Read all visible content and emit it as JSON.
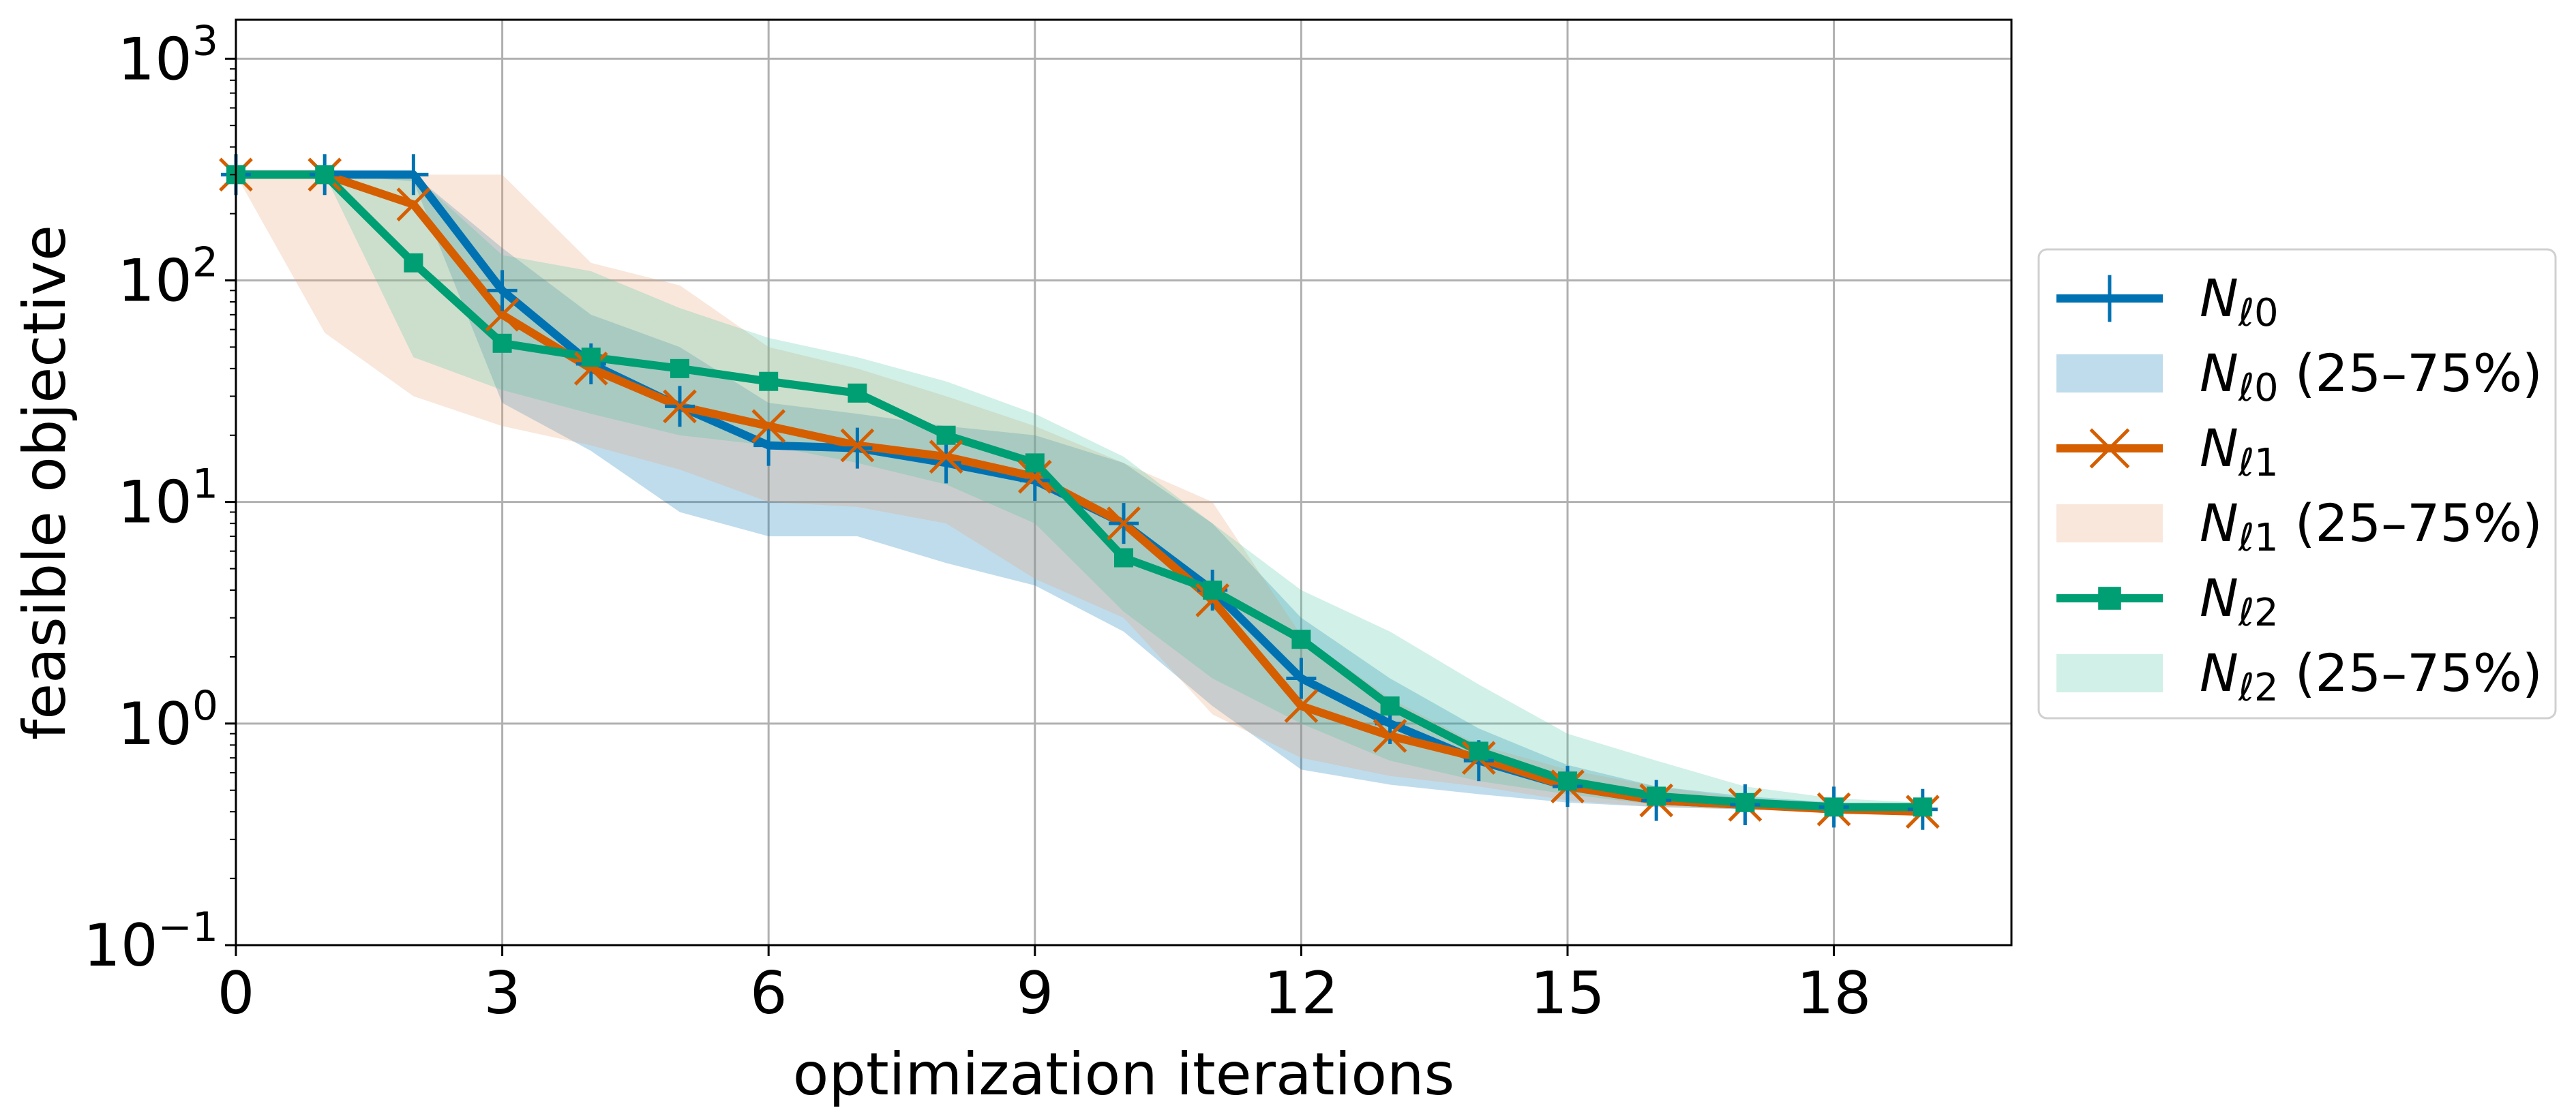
{
  "chart_data": {
    "type": "line",
    "title": "",
    "xlabel": "optimization iterations",
    "ylabel": "feasible objective",
    "xlim": [
      0,
      20
    ],
    "ylim": [
      0.1,
      1500
    ],
    "yscale": "log",
    "xticks": [
      0,
      3,
      6,
      9,
      12,
      15,
      18
    ],
    "xtick_labels": [
      "0",
      "3",
      "6",
      "9",
      "12",
      "15",
      "18"
    ],
    "yticks": [
      0.1,
      1,
      10,
      100,
      1000
    ],
    "ytick_labels": [
      {
        "base": "10",
        "exp": "−1"
      },
      {
        "base": "10",
        "exp": "0"
      },
      {
        "base": "10",
        "exp": "1"
      },
      {
        "base": "10",
        "exp": "2"
      },
      {
        "base": "10",
        "exp": "3"
      }
    ],
    "grid": true,
    "legend_position": "right, outside the plot",
    "x": [
      0,
      1,
      2,
      3,
      4,
      5,
      6,
      7,
      8,
      9,
      10,
      11,
      12,
      13,
      14,
      15,
      16,
      17,
      18,
      19
    ],
    "series": [
      {
        "name": "N",
        "name_sub": "ℓ0",
        "color": "#0072b2",
        "marker": "plus",
        "values": [
          300,
          300,
          300,
          90,
          42,
          27,
          18,
          17.5,
          15,
          12.5,
          8,
          4,
          1.6,
          1.0,
          0.68,
          0.52,
          0.45,
          0.43,
          0.42,
          0.41
        ],
        "band_label": " (25–75%)",
        "band_color": "#0072b2",
        "band_low": [
          300,
          300,
          280,
          28,
          17,
          9,
          7,
          7,
          5.3,
          4.2,
          2.6,
          1.2,
          0.62,
          0.53,
          0.48,
          0.44,
          0.42,
          0.41,
          0.4,
          0.39
        ],
        "band_high": [
          300,
          300,
          300,
          140,
          70,
          50,
          28,
          25,
          22,
          20,
          15,
          8,
          3.0,
          1.6,
          0.95,
          0.65,
          0.52,
          0.47,
          0.44,
          0.42
        ]
      },
      {
        "name": "N",
        "name_sub": "ℓ1",
        "color": "#d55e00",
        "marker": "x",
        "values": [
          300,
          300,
          220,
          70,
          40,
          27,
          22,
          18,
          16,
          13,
          8,
          3.6,
          1.2,
          0.88,
          0.7,
          0.52,
          0.45,
          0.43,
          0.41,
          0.4
        ],
        "band_label": " (25–75%)",
        "band_color": "#e69f6e",
        "band_low": [
          300,
          58,
          30,
          22,
          18,
          14,
          10,
          9.5,
          8,
          4.5,
          3.0,
          1.1,
          0.7,
          0.58,
          0.52,
          0.45,
          0.42,
          0.41,
          0.4,
          0.39
        ],
        "band_high": [
          300,
          300,
          300,
          300,
          120,
          95,
          50,
          40,
          30,
          22,
          15,
          10,
          2.5,
          1.3,
          0.8,
          0.62,
          0.52,
          0.46,
          0.43,
          0.42
        ]
      },
      {
        "name": "N",
        "name_sub": "ℓ2",
        "color": "#009e73",
        "marker": "square",
        "values": [
          300,
          300,
          120,
          52,
          45,
          40,
          35,
          31,
          20,
          15,
          5.6,
          4.0,
          2.4,
          1.2,
          0.75,
          0.55,
          0.47,
          0.44,
          0.42,
          0.42
        ],
        "band_label": " (25–75%)",
        "band_color": "#48c2a0",
        "band_low": [
          300,
          300,
          45,
          32,
          25,
          20,
          18,
          15,
          12,
          8,
          3.2,
          1.6,
          1.0,
          0.68,
          0.55,
          0.48,
          0.43,
          0.41,
          0.4,
          0.4
        ],
        "band_high": [
          300,
          300,
          300,
          130,
          110,
          75,
          55,
          45,
          35,
          25,
          16,
          8,
          4.0,
          2.6,
          1.5,
          0.9,
          0.68,
          0.52,
          0.46,
          0.44
        ]
      }
    ]
  }
}
